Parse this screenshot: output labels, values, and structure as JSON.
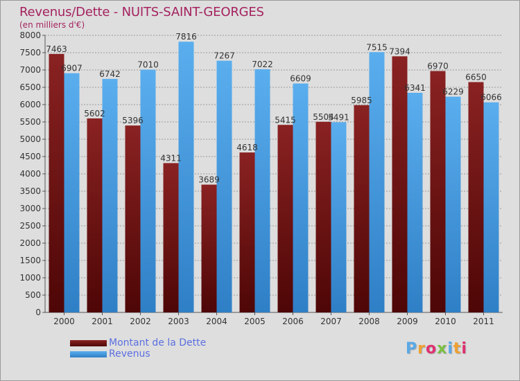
{
  "header": {
    "title": "Revenus/Dette - NUITS-SAINT-GEORGES",
    "subtitle": "(en milliers d'€)"
  },
  "colors": {
    "title": "#a4225f",
    "dette": "#7a1414",
    "revenus": "#4fa3e8",
    "grid": "#9a9a9a",
    "background": "#dedede"
  },
  "logo": {
    "text": "Proxiti",
    "letter_colors": [
      "#5aa9e6",
      "#f0a030",
      "#e03070",
      "#7ac043",
      "#5aa9e6",
      "#f0a030",
      "#e03070"
    ]
  },
  "chart_data": {
    "type": "bar",
    "title": "Revenus/Dette - NUITS-SAINT-GEORGES",
    "ylabel": "(en milliers d'€)",
    "xlabel": "",
    "categories": [
      "2000",
      "2001",
      "2002",
      "2003",
      "2004",
      "2005",
      "2006",
      "2007",
      "2008",
      "2009",
      "2010",
      "2011"
    ],
    "series": [
      {
        "name": "Montant de la Dette",
        "color": "#7a1414",
        "values": [
          7463,
          5602,
          5396,
          4311,
          3689,
          4618,
          5415,
          5504,
          5985,
          7394,
          6970,
          6650
        ]
      },
      {
        "name": "Revenus",
        "color": "#4fa3e8",
        "values": [
          6907,
          6742,
          7010,
          7816,
          7267,
          7022,
          6609,
          5491,
          7515,
          6341,
          6229,
          6066
        ]
      }
    ],
    "ylim": [
      0,
      8000
    ],
    "yticks": [
      0,
      500,
      1000,
      1500,
      2000,
      2500,
      3000,
      3500,
      4000,
      4500,
      5000,
      5500,
      6000,
      6500,
      7000,
      7500,
      8000
    ],
    "grid": true,
    "legend_position": "bottom-left"
  }
}
